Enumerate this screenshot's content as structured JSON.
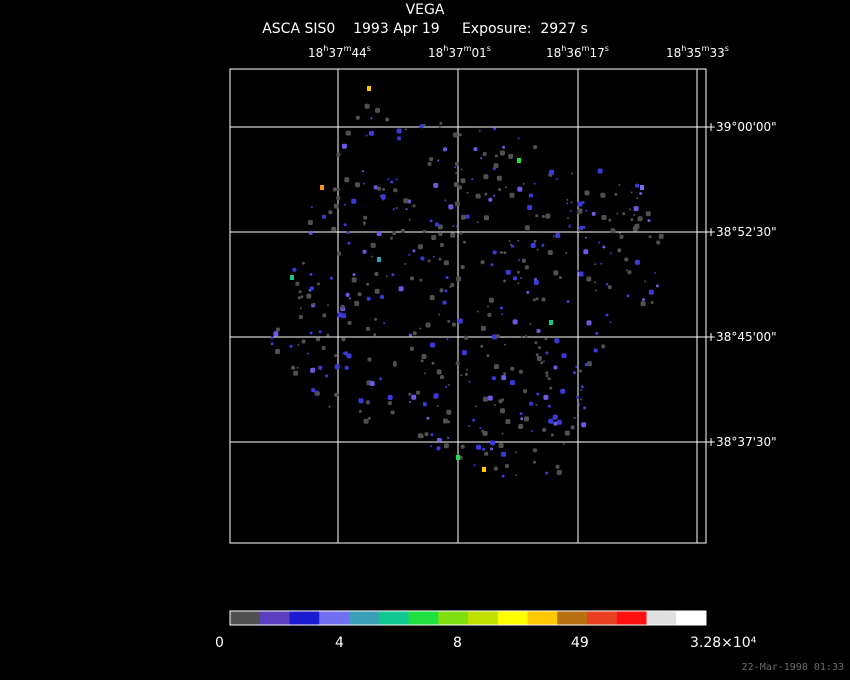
{
  "header": {
    "object": "VEGA",
    "instrument": "ASCA SIS0",
    "date": "1993 Apr 19",
    "exposure_label": "Exposure:",
    "exposure_value": "2927 s"
  },
  "ra_labels": [
    {
      "h": "18",
      "m": "37",
      "s": "44"
    },
    {
      "h": "18",
      "m": "37",
      "s": "01"
    },
    {
      "h": "18",
      "m": "36",
      "s": "17"
    },
    {
      "h": "18",
      "m": "35",
      "s": "33"
    }
  ],
  "dec_labels": [
    "+39°00'00\"",
    "+38°52'30\"",
    "+38°45'00\"",
    "+38°37'30\""
  ],
  "colorbar": {
    "colors": [
      "#505050",
      "#5a3fc0",
      "#1a1ad0",
      "#7070f0",
      "#3aa0b8",
      "#10c890",
      "#20e040",
      "#80e010",
      "#c0e000",
      "#ffff00",
      "#ffc800",
      "#b87010",
      "#e84020",
      "#ff1010",
      "#e0e0e0",
      "#ffffff"
    ],
    "labels": [
      "0",
      "4",
      "8",
      "49",
      "3.28×10⁴"
    ]
  },
  "timestamp": "22-Mar-1998 01:33"
}
